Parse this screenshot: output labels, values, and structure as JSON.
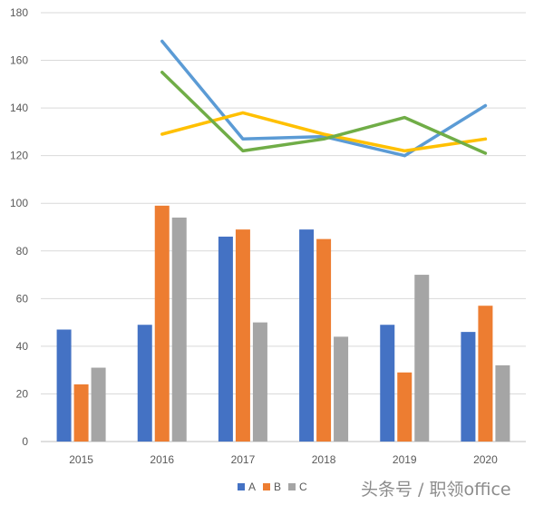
{
  "chart_data": {
    "type": "bar",
    "categories": [
      "2015",
      "2016",
      "2017",
      "2018",
      "2019",
      "2020"
    ],
    "series": [
      {
        "name": "A",
        "values": [
          47,
          49,
          86,
          89,
          49,
          46
        ],
        "color": "#4472C4"
      },
      {
        "name": "B",
        "values": [
          24,
          99,
          89,
          85,
          29,
          57
        ],
        "color": "#ED7D31"
      },
      {
        "name": "C",
        "values": [
          31,
          94,
          50,
          44,
          70,
          32
        ],
        "color": "#A5A5A5"
      }
    ],
    "line_series": [
      {
        "values": [
          null,
          168,
          127,
          128,
          120,
          141
        ],
        "color": "#5B9BD5"
      },
      {
        "values": [
          null,
          129,
          138,
          129,
          122,
          127
        ],
        "color": "#FFC000"
      },
      {
        "values": [
          null,
          155,
          122,
          127,
          136,
          121
        ],
        "color": "#70AD47"
      }
    ],
    "ylim": [
      0,
      180
    ],
    "yticks": [
      "0",
      "20",
      "40",
      "60",
      "80",
      "100",
      "120",
      "140",
      "160",
      "180"
    ],
    "grid": true,
    "legend": "bottom"
  },
  "watermark": "头条号 / 职领office"
}
